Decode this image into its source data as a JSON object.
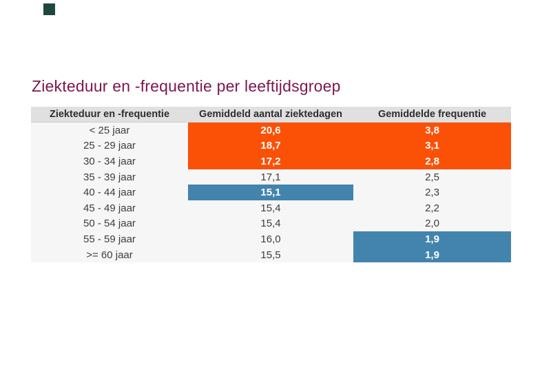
{
  "title": "Ziekteduur en -frequentie per leeftijdsgroep",
  "colors": {
    "title_text": "#7c164d",
    "orange_highlight": "#fa5107",
    "blue_highlight": "#4284ad",
    "header_bg": "#e0e0e1",
    "body_bg": "#f6f6f6",
    "logo_square": "#1d473f"
  },
  "chart_data": {
    "type": "table",
    "title": "Ziekteduur en -frequentie per leeftijdsgroep",
    "columns": [
      "Ziekteduur en -frequentie",
      "Gemiddeld aantal ziektedagen",
      "Gemiddelde frequentie"
    ],
    "rows": [
      {
        "age_group": "< 25 jaar",
        "sick_days": "20,6",
        "frequency": "3,8",
        "sick_days_highlight": "orange",
        "frequency_highlight": "orange"
      },
      {
        "age_group": "25 - 29 jaar",
        "sick_days": "18,7",
        "frequency": "3,1",
        "sick_days_highlight": "orange",
        "frequency_highlight": "orange"
      },
      {
        "age_group": "30 - 34 jaar",
        "sick_days": "17,2",
        "frequency": "2,8",
        "sick_days_highlight": "orange",
        "frequency_highlight": "orange"
      },
      {
        "age_group": "35 - 39 jaar",
        "sick_days": "17,1",
        "frequency": "2,5",
        "sick_days_highlight": "none",
        "frequency_highlight": "none"
      },
      {
        "age_group": "40 - 44 jaar",
        "sick_days": "15,1",
        "frequency": "2,3",
        "sick_days_highlight": "blue",
        "frequency_highlight": "none"
      },
      {
        "age_group": "45 - 49 jaar",
        "sick_days": "15,4",
        "frequency": "2,2",
        "sick_days_highlight": "none",
        "frequency_highlight": "none"
      },
      {
        "age_group": "50 - 54 jaar",
        "sick_days": "15,4",
        "frequency": "2,0",
        "sick_days_highlight": "none",
        "frequency_highlight": "none"
      },
      {
        "age_group": "55 - 59 jaar",
        "sick_days": "16,0",
        "frequency": "1,9",
        "sick_days_highlight": "none",
        "frequency_highlight": "blue"
      },
      {
        "age_group": ">= 60 jaar",
        "sick_days": "15,5",
        "frequency": "1,9",
        "sick_days_highlight": "none",
        "frequency_highlight": "blue"
      }
    ]
  }
}
